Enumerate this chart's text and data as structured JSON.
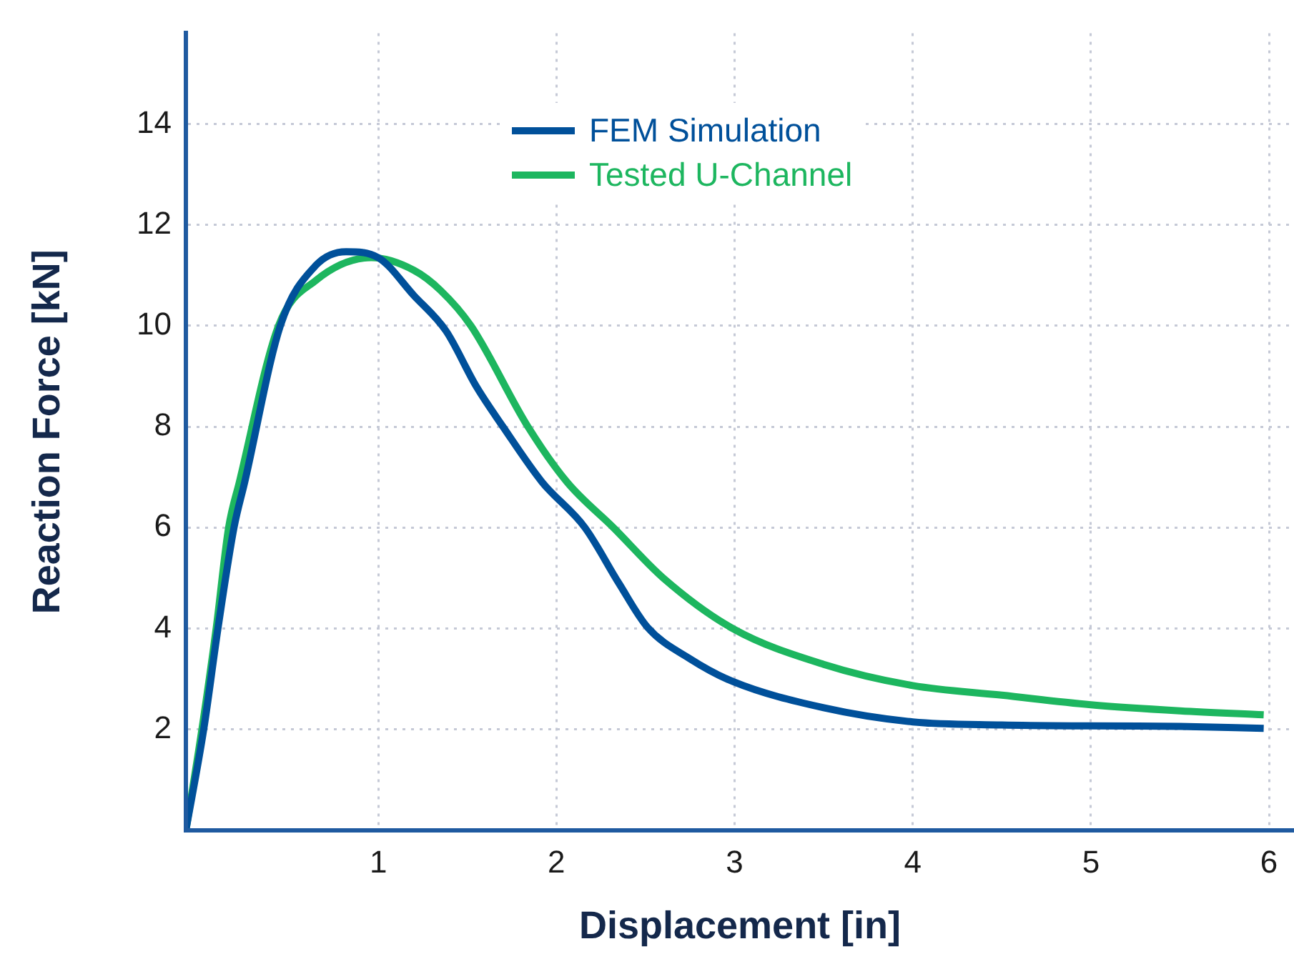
{
  "chart_data": {
    "type": "line",
    "xlabel": "Displacement [in]",
    "ylabel": "Reaction Force [kN]",
    "xlim": [
      -0.08,
      6.14
    ],
    "ylim": [
      0,
      15.8
    ],
    "xticks": [
      1,
      2,
      3,
      4,
      5,
      6
    ],
    "yticks": [
      2,
      4,
      6,
      8,
      10,
      12,
      14
    ],
    "grid": true,
    "legend": "top",
    "series": [
      {
        "name": "FEM Simulation",
        "color": "#00509a",
        "x": [
          -0.08,
          0.02,
          0.1,
          0.19,
          0.25,
          0.45,
          0.65,
          0.82,
          1.0,
          1.2,
          1.38,
          1.55,
          1.7,
          1.92,
          2.16,
          2.35,
          2.51,
          2.75,
          2.99,
          3.5,
          4.0,
          4.5,
          5.0,
          5.5,
          5.97
        ],
        "values": [
          0,
          2,
          4,
          6,
          6.9,
          10,
          11.2,
          11.47,
          11.35,
          10.6,
          9.9,
          8.8,
          8,
          6.9,
          6,
          4.9,
          4.03,
          3.4,
          2.95,
          2.43,
          2.15,
          2.09,
          2.07,
          2.06,
          2.02
        ]
      },
      {
        "name": "Tested U-Channel",
        "color": "#1db65f",
        "x": [
          -0.08,
          0.01,
          0.09,
          0.16,
          0.22,
          0.44,
          0.65,
          0.96,
          1.2,
          1.35,
          1.52,
          1.84,
          2.06,
          2.32,
          2.6,
          2.99,
          3.5,
          4.0,
          4.5,
          5.0,
          5.5,
          5.97
        ],
        "values": [
          0,
          2,
          4,
          6,
          6.9,
          10,
          10.9,
          11.35,
          11.1,
          10.7,
          10,
          8,
          6.9,
          6,
          5,
          4,
          3.29,
          2.87,
          2.68,
          2.49,
          2.37,
          2.29
        ]
      }
    ]
  }
}
